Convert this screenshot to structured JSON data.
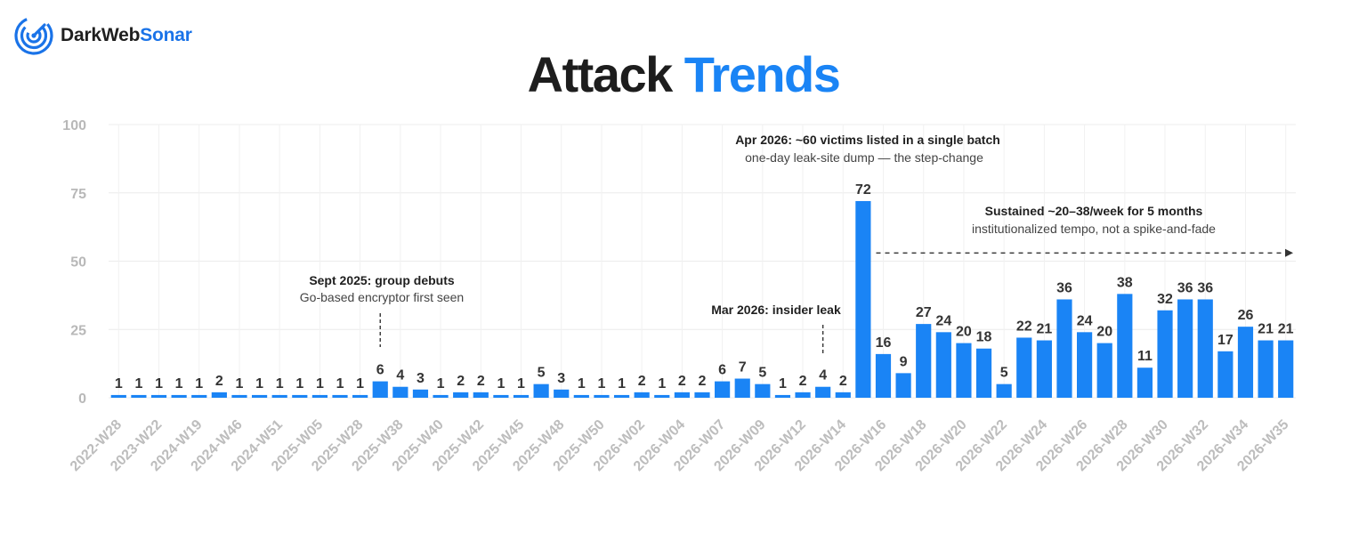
{
  "brand": {
    "name_part1": "DarkWeb",
    "name_part2": "Sonar",
    "accent_color": "#1a73e8",
    "logo_icon": "radar-sonar-icon"
  },
  "title": {
    "part1": "Attack",
    "part2": "Trends",
    "part2_color": "#1a84f5"
  },
  "chart_data": {
    "type": "bar",
    "ylim": [
      0,
      100
    ],
    "yticks": [
      0,
      25,
      50,
      75,
      100
    ],
    "grid": true,
    "bar_color": "#1a84f5",
    "values": [
      1,
      1,
      1,
      1,
      1,
      2,
      1,
      1,
      1,
      1,
      1,
      1,
      1,
      6,
      4,
      3,
      1,
      2,
      2,
      1,
      1,
      5,
      3,
      1,
      1,
      1,
      2,
      1,
      2,
      2,
      6,
      7,
      5,
      1,
      2,
      4,
      2,
      72,
      16,
      9,
      27,
      24,
      20,
      18,
      5,
      22,
      21,
      36,
      24,
      20,
      38,
      11,
      32,
      36,
      36,
      17,
      26,
      21,
      21
    ],
    "tick_labels": [
      "2022-W28",
      "2023-W22",
      "2024-W19",
      "2024-W46",
      "2024-W51",
      "2025-W05",
      "2025-W28",
      "2025-W38",
      "2025-W40",
      "2025-W42",
      "2025-W45",
      "2025-W48",
      "2025-W50",
      "2026-W02",
      "2026-W04",
      "2026-W07",
      "2026-W09",
      "2026-W12",
      "2026-W14",
      "2026-W16",
      "2026-W18",
      "2026-W20",
      "2026-W22",
      "2026-W24",
      "2026-W26",
      "2026-W28",
      "2026-W30",
      "2026-W32",
      "2026-W34",
      "2026-W35"
    ],
    "annotations": [
      {
        "title": "Sept 2025: group debuts",
        "subtitle": "Go-based encryptor first seen",
        "bar_index": 13
      },
      {
        "title": "Mar 2026: insider leak",
        "subtitle": "",
        "bar_index": 35
      },
      {
        "title": "Apr 2026: ~60 victims listed in a single batch",
        "subtitle": "one-day leak-site dump — the step-change",
        "bar_index": 37
      },
      {
        "title": "Sustained ~20–38/week for 5 months",
        "subtitle": "institutionalized tempo, not a spike-and-fade",
        "from_bar_index": 38,
        "y": 53
      }
    ]
  }
}
